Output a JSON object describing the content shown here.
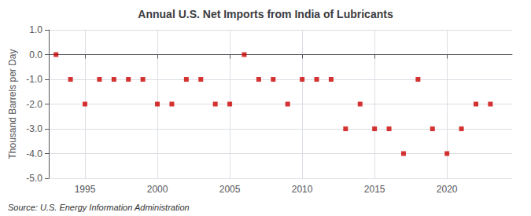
{
  "chart_data": {
    "type": "scatter",
    "title": "Annual U.S. Net Imports from India of Lubricants",
    "ylabel": "Thousand Barrels per Day",
    "annotation": "Source: U.S. Energy Information Administration",
    "color": "#cc0000",
    "marker": "square",
    "grid": true,
    "xlim": [
      1992.5,
      2024.5
    ],
    "xticks": [
      1995,
      2000,
      2005,
      2010,
      2015,
      2020
    ],
    "ylim": [
      -5.0,
      1.0
    ],
    "yticks": [
      {
        "value": 1.0,
        "label": "1.0"
      },
      {
        "value": 0.0,
        "label": "0.0"
      },
      {
        "value": -1.0,
        "label": "-1.0"
      },
      {
        "value": -2.0,
        "label": "-2.0"
      },
      {
        "value": -3.0,
        "label": "-3.0"
      },
      {
        "value": -4.0,
        "label": "-4.0"
      },
      {
        "value": -5.0,
        "label": "-5.0"
      }
    ],
    "x": [
      1993,
      1994,
      1995,
      1996,
      1997,
      1998,
      1999,
      2000,
      2001,
      2002,
      2003,
      2004,
      2005,
      2006,
      2007,
      2008,
      2009,
      2010,
      2011,
      2012,
      2013,
      2014,
      2015,
      2016,
      2017,
      2018,
      2019,
      2020,
      2021,
      2022,
      2023
    ],
    "values": [
      0,
      -1,
      -2,
      -1,
      -1,
      -1,
      -1,
      -2,
      -2,
      -1,
      -1,
      -2,
      -2,
      0,
      -1,
      -1,
      -2,
      -1,
      -1,
      -1,
      -3,
      -2,
      -3,
      -3,
      -4,
      -1,
      -3,
      -4,
      -3,
      -2,
      -2
    ]
  }
}
